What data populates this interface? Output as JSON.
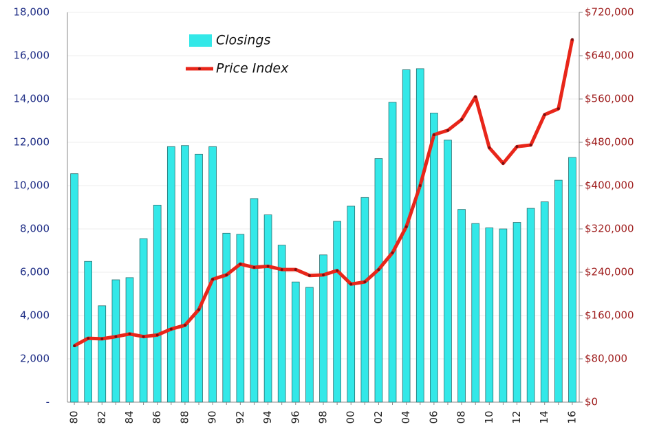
{
  "chart_data": {
    "type": "bar_line",
    "categories": [
      "80",
      null,
      "82",
      null,
      "84",
      null,
      "86",
      null,
      "88",
      null,
      "90",
      null,
      "92",
      null,
      "94",
      null,
      "96",
      null,
      "98",
      null,
      "00",
      null,
      "02",
      null,
      "04",
      null,
      "06",
      null,
      "08",
      null,
      "10",
      null,
      "12",
      null,
      "14",
      null,
      "16"
    ],
    "series": [
      {
        "name": "Closings",
        "color": "#33e8e8",
        "type": "bar",
        "values": [
          10550,
          6500,
          4450,
          5650,
          5750,
          7550,
          9100,
          11800,
          11850,
          11450,
          11800,
          7800,
          7750,
          9400,
          8650,
          7250,
          5550,
          5300,
          6800,
          8350,
          9050,
          9450,
          11250,
          13850,
          15350,
          15400,
          13350,
          12100,
          8900,
          8250,
          8050,
          8000,
          8300,
          8950,
          9250,
          10250,
          11300
        ]
      },
      {
        "name": "Price Index",
        "color": "#e8261a",
        "type": "line",
        "axis": "y2",
        "values": [
          104000,
          118000,
          117000,
          121000,
          126000,
          121000,
          124000,
          135000,
          142000,
          171000,
          227000,
          235000,
          255000,
          249000,
          251000,
          245000,
          245000,
          234000,
          235000,
          243000,
          218000,
          222000,
          245000,
          276000,
          324000,
          400000,
          494000,
          502000,
          522000,
          564000,
          470000,
          441000,
          472000,
          475000,
          531000,
          542000,
          670000
        ]
      }
    ],
    "ylim": [
      0,
      18000
    ],
    "yticks": [
      {
        "value": 0,
        "label": "-"
      },
      {
        "value": 2000,
        "label": "2,000"
      },
      {
        "value": 4000,
        "label": "4,000"
      },
      {
        "value": 6000,
        "label": "6,000"
      },
      {
        "value": 8000,
        "label": "8,000"
      },
      {
        "value": 10000,
        "label": "10,000"
      },
      {
        "value": 12000,
        "label": "12,000"
      },
      {
        "value": 14000,
        "label": "14,000"
      },
      {
        "value": 16000,
        "label": "16,000"
      },
      {
        "value": 18000,
        "label": "18,000"
      }
    ],
    "y2lim": [
      0,
      720000
    ],
    "y2ticks": [
      {
        "value": 0,
        "label": "$0"
      },
      {
        "value": 80000,
        "label": "$80,000"
      },
      {
        "value": 160000,
        "label": "$160,000"
      },
      {
        "value": 240000,
        "label": "$240,000"
      },
      {
        "value": 320000,
        "label": "$320,000"
      },
      {
        "value": 400000,
        "label": "$400,000"
      },
      {
        "value": 480000,
        "label": "$480,000"
      },
      {
        "value": 560000,
        "label": "$560,000"
      },
      {
        "value": 640000,
        "label": "$640,000"
      },
      {
        "value": 720000,
        "label": "$720,000"
      }
    ],
    "grid": true,
    "legend": "upper left"
  }
}
